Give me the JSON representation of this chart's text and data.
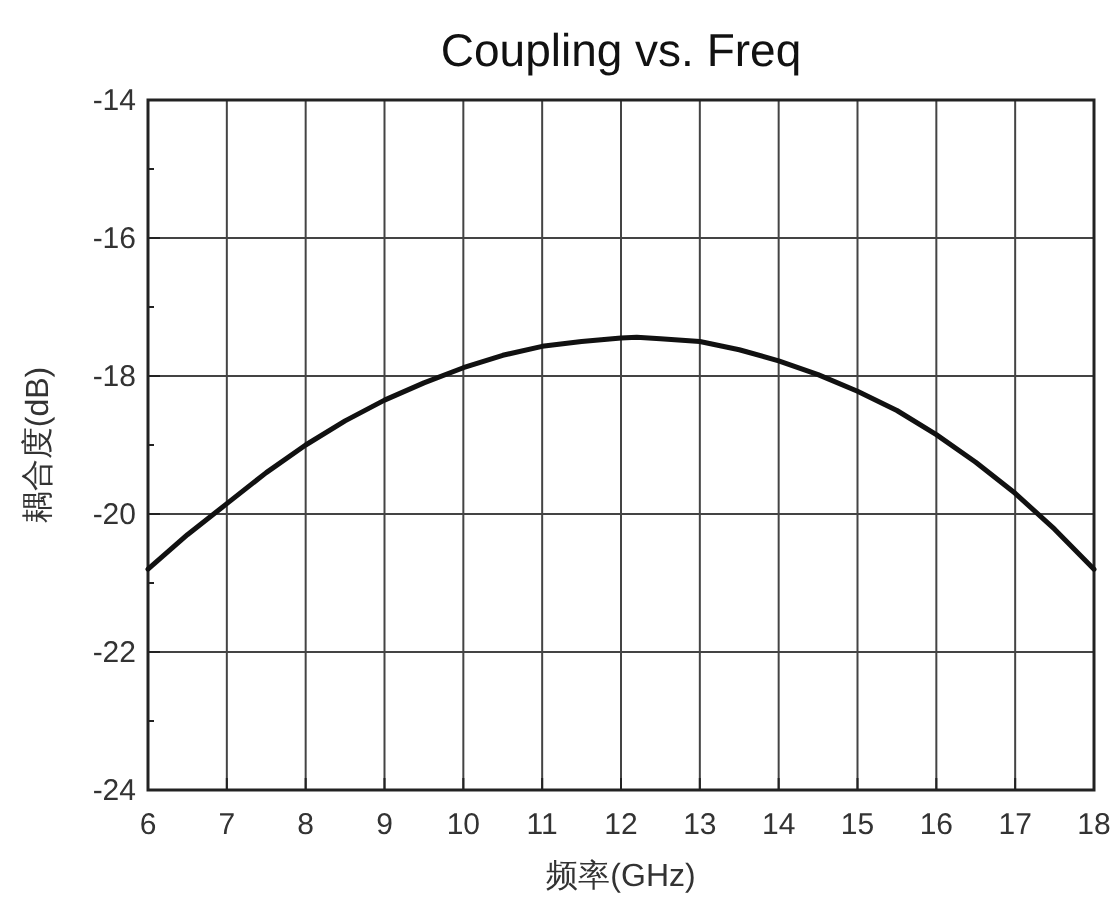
{
  "chart_data": {
    "type": "line",
    "title": "Coupling vs. Freq",
    "xlabel": "频率(GHz)",
    "ylabel": "耦合度(dB)",
    "xlim": [
      6,
      18
    ],
    "xticks": [
      6,
      7,
      8,
      9,
      10,
      11,
      12,
      13,
      14,
      15,
      16,
      17,
      18
    ],
    "ylim": [
      -24,
      -14
    ],
    "yticks": [
      -24,
      {
        "value": -23,
        "label": null
      },
      -22,
      {
        "value": -21,
        "label": null
      },
      -20,
      {
        "value": -19,
        "label": null
      },
      -18,
      {
        "value": -17,
        "label": null
      },
      -16,
      {
        "value": -15,
        "label": null
      },
      -14
    ],
    "grid": true,
    "marker": "none",
    "line_style": "solid",
    "series": [
      {
        "color": "#111111",
        "x": [
          6,
          6.5,
          7,
          7.5,
          8,
          8.5,
          9,
          9.5,
          10,
          10.5,
          11,
          11.5,
          12,
          12.2,
          12.5,
          13,
          13.5,
          14,
          14.5,
          15,
          15.5,
          16,
          16.5,
          17,
          17.5,
          18
        ],
        "values": [
          -20.8,
          -20.3,
          -19.85,
          -19.4,
          -19.0,
          -18.65,
          -18.35,
          -18.1,
          -17.88,
          -17.7,
          -17.57,
          -17.5,
          -17.45,
          -17.44,
          -17.46,
          -17.5,
          -17.62,
          -17.78,
          -17.98,
          -18.22,
          -18.5,
          -18.85,
          -19.25,
          -19.7,
          -20.22,
          -20.8
        ]
      }
    ]
  }
}
